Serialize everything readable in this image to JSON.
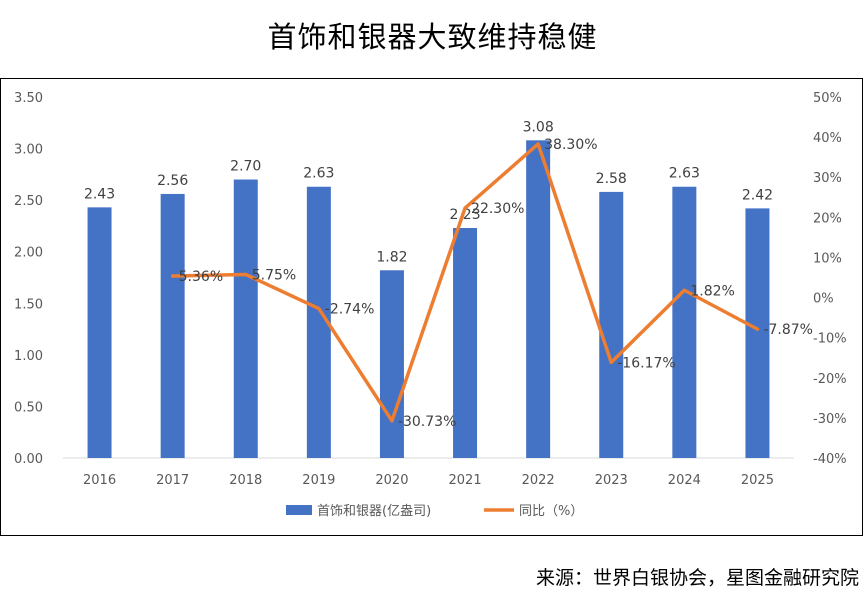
{
  "title": "首饰和银器大致维持稳健",
  "source": "来源：世界白银协会，星图金融研究院",
  "chart_data": {
    "type": "bar",
    "categories": [
      "2016",
      "2017",
      "2018",
      "2019",
      "2020",
      "2021",
      "2022",
      "2023",
      "2024",
      "2025"
    ],
    "series": [
      {
        "name": "首饰和银器(亿盎司)",
        "type": "bar",
        "axis": "left",
        "color": "#4472C4",
        "values": [
          2.43,
          2.56,
          2.7,
          2.63,
          1.82,
          2.23,
          3.08,
          2.58,
          2.63,
          2.42
        ],
        "labels": [
          "2.43",
          "2.56",
          "2.70",
          "2.63",
          "1.82",
          "2.23",
          "3.08",
          "2.58",
          "2.63",
          "2.42"
        ]
      },
      {
        "name": "同比（%）",
        "type": "line",
        "axis": "right",
        "color": "#ED7D31",
        "values": [
          null,
          5.36,
          5.75,
          -2.74,
          -30.73,
          22.3,
          38.3,
          -16.17,
          1.82,
          -7.87
        ],
        "labels": [
          "",
          "5.36%",
          "5.75%",
          "-2.74%",
          "-30.73%",
          "22.30%",
          "38.30%",
          "-16.17%",
          "1.82%",
          "-7.87%"
        ]
      }
    ],
    "y_left": {
      "range": [
        0,
        3.5
      ],
      "ticks": [
        0,
        0.5,
        1.0,
        1.5,
        2.0,
        2.5,
        3.0,
        3.5
      ],
      "tick_labels": [
        "0.00",
        "0.50",
        "1.00",
        "1.50",
        "2.00",
        "2.50",
        "3.00",
        "3.50"
      ]
    },
    "y_right": {
      "range": [
        -40,
        50
      ],
      "ticks": [
        -40,
        -30,
        -20,
        -10,
        0,
        10,
        20,
        30,
        40,
        50
      ],
      "tick_labels": [
        "-40%",
        "-30%",
        "-20%",
        "-10%",
        "0%",
        "10%",
        "20%",
        "30%",
        "40%",
        "50%"
      ]
    },
    "grid": false,
    "legend": "bottom"
  }
}
